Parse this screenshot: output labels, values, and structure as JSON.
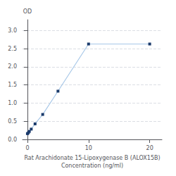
{
  "chart_data": {
    "type": "line",
    "x": [
      0,
      0.156,
      0.312,
      0.625,
      1.25,
      2.5,
      5,
      10,
      20
    ],
    "values": [
      0.158,
      0.183,
      0.22,
      0.283,
      0.428,
      0.688,
      1.33,
      2.63,
      2.63
    ],
    "color": "#a8c8e8",
    "marker": "square",
    "marker_color": "#1a3a6b",
    "xlabel": "Rat Arachidonate 15-Lipoxygenase B (ALOX15B)\nConcentration (ng/ml)",
    "ylabel": "OD",
    "xlim": [
      -0.8,
      22
    ],
    "ylim": [
      0,
      3.3
    ],
    "xticks": [
      0,
      10,
      20
    ],
    "yticks": [
      {
        "value": 0,
        "label": "0.0"
      },
      0.5,
      {
        "value": 1.0,
        "label": "1.0"
      },
      1.5,
      {
        "value": 2.0,
        "label": "2.0"
      },
      2.5,
      {
        "value": 3.0,
        "label": "3.0"
      }
    ],
    "grid": "y"
  }
}
